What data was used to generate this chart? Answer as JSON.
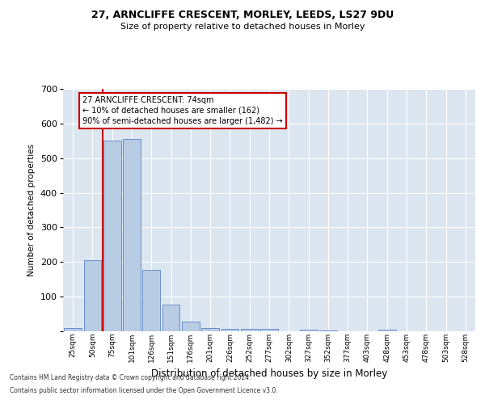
{
  "title1": "27, ARNCLIFFE CRESCENT, MORLEY, LEEDS, LS27 9DU",
  "title2": "Size of property relative to detached houses in Morley",
  "xlabel": "Distribution of detached houses by size in Morley",
  "ylabel": "Number of detached properties",
  "categories": [
    "25sqm",
    "50sqm",
    "75sqm",
    "101sqm",
    "126sqm",
    "151sqm",
    "176sqm",
    "201sqm",
    "226sqm",
    "252sqm",
    "277sqm",
    "302sqm",
    "327sqm",
    "352sqm",
    "377sqm",
    "403sqm",
    "428sqm",
    "453sqm",
    "478sqm",
    "503sqm",
    "528sqm"
  ],
  "values": [
    10,
    205,
    550,
    555,
    178,
    78,
    28,
    10,
    8,
    8,
    8,
    0,
    5,
    3,
    0,
    0,
    5,
    0,
    0,
    0,
    0
  ],
  "bar_color": "#b8cce4",
  "bar_edge_color": "#4472c4",
  "background_color": "#dce6f1",
  "grid_color": "#ffffff",
  "property_line_color": "#cc0000",
  "annotation_text": "27 ARNCLIFFE CRESCENT: 74sqm\n← 10% of detached houses are smaller (162)\n90% of semi-detached houses are larger (1,482) →",
  "annotation_box_color": "#ffffff",
  "annotation_box_edge": "#cc0000",
  "footer1": "Contains HM Land Registry data © Crown copyright and database right 2024.",
  "footer2": "Contains public sector information licensed under the Open Government Licence v3.0.",
  "ylim": [
    0,
    700
  ],
  "yticks": [
    0,
    100,
    200,
    300,
    400,
    500,
    600,
    700
  ]
}
